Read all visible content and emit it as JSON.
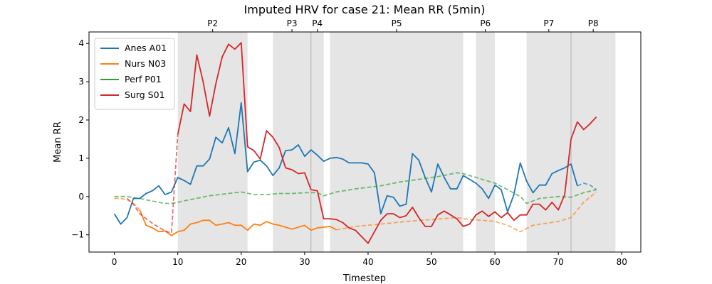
{
  "chart_data": {
    "type": "line",
    "title": "Imputed HRV for case 21: Mean RR (5min)",
    "xlabel": "Timestep",
    "ylabel": "Mean RR",
    "xlim": [
      -4,
      83
    ],
    "ylim": [
      -1.45,
      4.3
    ],
    "xticks": [
      0,
      10,
      20,
      30,
      40,
      50,
      60,
      70,
      80
    ],
    "yticks": [
      -1,
      0,
      1,
      2,
      3,
      4
    ],
    "grid": false,
    "legend_position": "top-left",
    "phases": [
      {
        "label": "P2",
        "start": 10,
        "end": 21
      },
      {
        "label": "P3",
        "start": 25,
        "end": 31
      },
      {
        "label": "P4",
        "start": 31,
        "end": 33
      },
      {
        "label": "P5",
        "start": 34,
        "end": 55
      },
      {
        "label": "P6",
        "start": 57,
        "end": 60
      },
      {
        "label": "P7",
        "start": 65,
        "end": 72
      },
      {
        "label": "P8",
        "start": 72,
        "end": 79
      }
    ],
    "series": [
      {
        "name": "Anes A01",
        "color": "#1f77b4",
        "solid": [
          [
            [
              0,
              -0.45
            ],
            [
              1,
              -0.72
            ],
            [
              2,
              -0.55
            ],
            [
              3,
              -0.05
            ],
            [
              4,
              -0.05
            ],
            [
              5,
              0.08
            ],
            [
              6,
              0.15
            ],
            [
              7,
              0.28
            ],
            [
              8,
              0.05
            ],
            [
              9,
              0.12
            ],
            [
              10,
              0.5
            ],
            [
              11,
              0.42
            ],
            [
              12,
              0.32
            ],
            [
              13,
              0.8
            ],
            [
              14,
              0.8
            ],
            [
              15,
              0.98
            ],
            [
              16,
              1.55
            ],
            [
              17,
              1.4
            ],
            [
              18,
              1.8
            ],
            [
              19,
              1.12
            ],
            [
              20,
              2.45
            ],
            [
              21,
              0.65
            ],
            [
              22,
              0.9
            ],
            [
              23,
              0.95
            ],
            [
              24,
              0.8
            ],
            [
              25,
              0.55
            ],
            [
              26,
              0.75
            ],
            [
              27,
              1.2
            ],
            [
              28,
              1.22
            ],
            [
              29,
              1.35
            ],
            [
              30,
              1.05
            ],
            [
              31,
              1.22
            ],
            [
              32,
              1.08
            ],
            [
              33,
              0.92
            ],
            [
              34,
              1.0
            ],
            [
              35,
              1.02
            ],
            [
              36,
              0.98
            ],
            [
              37,
              0.88
            ],
            [
              38,
              0.88
            ],
            [
              39,
              0.88
            ],
            [
              40,
              0.85
            ],
            [
              41,
              0.62
            ],
            [
              42,
              -0.45
            ],
            [
              43,
              0.02
            ],
            [
              44,
              -0.02
            ],
            [
              45,
              -0.25
            ],
            [
              46,
              -0.2
            ],
            [
              47,
              1.12
            ],
            [
              48,
              0.95
            ],
            [
              49,
              0.5
            ],
            [
              50,
              0.12
            ],
            [
              51,
              0.85
            ],
            [
              52,
              0.5
            ],
            [
              53,
              0.2
            ],
            [
              54,
              0.2
            ],
            [
              55,
              0.55
            ],
            [
              56,
              0.45
            ],
            [
              57,
              0.35
            ],
            [
              58,
              0.2
            ],
            [
              59,
              -0.05
            ],
            [
              60,
              0.3
            ],
            [
              61,
              0.18
            ],
            [
              62,
              -0.4
            ],
            [
              63,
              0.05
            ],
            [
              64,
              0.88
            ],
            [
              65,
              0.4
            ],
            [
              66,
              0.1
            ],
            [
              67,
              0.3
            ],
            [
              68,
              0.3
            ],
            [
              69,
              0.6
            ],
            [
              70,
              0.68
            ],
            [
              71,
              0.75
            ],
            [
              72,
              0.85
            ],
            [
              73,
              0.28
            ]
          ]
        ],
        "dashed": [
          [
            [
              73,
              0.28
            ],
            [
              74,
              0.35
            ],
            [
              75,
              0.3
            ],
            [
              76,
              0.18
            ]
          ]
        ]
      },
      {
        "name": "Nurs N03",
        "color": "#ff7f0e",
        "solid": [
          [
            [
              4,
              -0.35
            ],
            [
              5,
              -0.75
            ],
            [
              6,
              -0.82
            ],
            [
              7,
              -0.92
            ],
            [
              8,
              -0.9
            ],
            [
              9,
              -1.02
            ],
            [
              10,
              -0.92
            ],
            [
              11,
              -0.88
            ],
            [
              12,
              -0.72
            ],
            [
              13,
              -0.68
            ],
            [
              14,
              -0.62
            ],
            [
              15,
              -0.62
            ],
            [
              16,
              -0.75
            ],
            [
              17,
              -0.72
            ],
            [
              18,
              -0.68
            ],
            [
              19,
              -0.75
            ],
            [
              20,
              -0.75
            ],
            [
              21,
              -0.88
            ],
            [
              22,
              -0.72
            ],
            [
              23,
              -0.75
            ],
            [
              24,
              -0.65
            ],
            [
              25,
              -0.72
            ],
            [
              26,
              -0.75
            ],
            [
              27,
              -0.8
            ],
            [
              28,
              -0.85
            ],
            [
              29,
              -0.8
            ],
            [
              30,
              -0.75
            ],
            [
              31,
              -0.88
            ],
            [
              32,
              -0.82
            ],
            [
              33,
              -0.8
            ],
            [
              34,
              -0.78
            ],
            [
              35,
              -0.87
            ]
          ]
        ],
        "dashed": [
          [
            [
              0,
              -0.05
            ],
            [
              1,
              -0.05
            ],
            [
              2,
              -0.08
            ],
            [
              3,
              -0.18
            ],
            [
              4,
              -0.35
            ]
          ],
          [
            [
              35,
              -0.87
            ],
            [
              38,
              -0.78
            ],
            [
              42,
              -0.72
            ],
            [
              46,
              -0.65
            ],
            [
              50,
              -0.6
            ],
            [
              54,
              -0.55
            ],
            [
              56,
              -0.6
            ],
            [
              58,
              -0.62
            ],
            [
              60,
              -0.65
            ],
            [
              62,
              -0.75
            ],
            [
              64,
              -0.92
            ],
            [
              66,
              -0.75
            ],
            [
              70,
              -0.65
            ],
            [
              72,
              -0.55
            ],
            [
              74,
              -0.15
            ],
            [
              76,
              0.12
            ]
          ]
        ]
      },
      {
        "name": "Perf P01",
        "color": "#2ca02c",
        "solid": [],
        "dashed": [
          [
            [
              0,
              0.0
            ],
            [
              2,
              0.0
            ],
            [
              4,
              -0.05
            ],
            [
              6,
              -0.12
            ],
            [
              8,
              -0.18
            ],
            [
              9,
              -0.18
            ],
            [
              10,
              -0.15
            ],
            [
              12,
              -0.08
            ],
            [
              15,
              0.02
            ],
            [
              18,
              0.08
            ],
            [
              20,
              0.12
            ],
            [
              22,
              0.05
            ],
            [
              24,
              0.05
            ],
            [
              26,
              0.08
            ],
            [
              28,
              0.08
            ],
            [
              30,
              0.1
            ],
            [
              32,
              0.1
            ],
            [
              33,
              0.02
            ],
            [
              35,
              0.12
            ],
            [
              38,
              0.2
            ],
            [
              42,
              0.28
            ],
            [
              45,
              0.38
            ],
            [
              48,
              0.45
            ],
            [
              51,
              0.52
            ],
            [
              54,
              0.62
            ],
            [
              55,
              0.6
            ],
            [
              57,
              0.5
            ],
            [
              60,
              0.35
            ],
            [
              62,
              0.18
            ],
            [
              64,
              0.0
            ],
            [
              65,
              -0.18
            ],
            [
              67,
              -0.05
            ],
            [
              70,
              0.0
            ],
            [
              72,
              -0.02
            ],
            [
              74,
              0.1
            ],
            [
              76,
              0.18
            ]
          ]
        ]
      },
      {
        "name": "Surg S01",
        "color": "#d62728",
        "solid": [
          [
            [
              10,
              1.62
            ],
            [
              11,
              2.42
            ],
            [
              12,
              2.22
            ],
            [
              13,
              3.7
            ],
            [
              14,
              3.0
            ],
            [
              15,
              2.1
            ],
            [
              16,
              2.95
            ],
            [
              17,
              3.65
            ],
            [
              18,
              3.98
            ],
            [
              19,
              3.85
            ],
            [
              20,
              4.02
            ],
            [
              21,
              1.3
            ],
            [
              22,
              1.2
            ],
            [
              23,
              0.98
            ],
            [
              24,
              1.72
            ],
            [
              25,
              1.55
            ],
            [
              26,
              1.28
            ],
            [
              27,
              0.75
            ],
            [
              28,
              0.7
            ],
            [
              29,
              0.6
            ],
            [
              30,
              0.62
            ],
            [
              31,
              0.18
            ],
            [
              32,
              0.15
            ],
            [
              33,
              -0.58
            ],
            [
              34,
              -0.58
            ],
            [
              35,
              -0.6
            ],
            [
              36,
              -0.68
            ],
            [
              37,
              -0.82
            ],
            [
              38,
              -0.88
            ],
            [
              39,
              -1.05
            ],
            [
              40,
              -1.22
            ],
            [
              41,
              -0.92
            ],
            [
              42,
              -0.62
            ],
            [
              43,
              -0.45
            ],
            [
              44,
              -0.45
            ],
            [
              45,
              -0.55
            ],
            [
              46,
              -0.5
            ],
            [
              47,
              -0.28
            ],
            [
              48,
              -0.55
            ],
            [
              49,
              -0.78
            ],
            [
              50,
              -0.78
            ],
            [
              51,
              -0.48
            ],
            [
              52,
              -0.38
            ],
            [
              53,
              -0.48
            ],
            [
              54,
              -0.58
            ],
            [
              55,
              -0.78
            ],
            [
              56,
              -0.72
            ],
            [
              57,
              -0.48
            ],
            [
              58,
              -0.38
            ],
            [
              59,
              -0.52
            ],
            [
              60,
              -0.4
            ],
            [
              61,
              -0.55
            ],
            [
              62,
              -0.42
            ],
            [
              63,
              -0.62
            ],
            [
              64,
              -0.48
            ],
            [
              65,
              -0.48
            ],
            [
              66,
              -0.2
            ],
            [
              67,
              -0.2
            ],
            [
              68,
              -0.35
            ],
            [
              69,
              -0.15
            ],
            [
              70,
              -0.35
            ],
            [
              71,
              0.05
            ],
            [
              72,
              1.5
            ],
            [
              73,
              1.95
            ],
            [
              74,
              1.75
            ],
            [
              75,
              1.9
            ],
            [
              76,
              2.08
            ]
          ]
        ],
        "dashed": [
          [
            [
              2,
              -0.05
            ],
            [
              3,
              -0.2
            ],
            [
              4,
              -0.45
            ],
            [
              6,
              -0.7
            ],
            [
              8,
              -0.9
            ],
            [
              9,
              -0.95
            ],
            [
              10,
              1.62
            ]
          ]
        ]
      }
    ]
  }
}
